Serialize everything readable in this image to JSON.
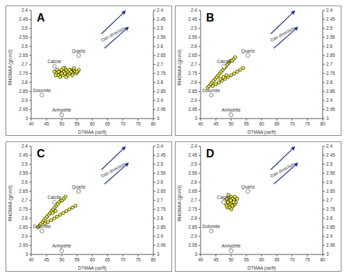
{
  "chart_data": [
    {
      "type": "scatter",
      "title": "A",
      "x_label": "DTMAA (us/ft)",
      "y_label": "RHOMAA (g/cm3)",
      "xlim": [
        40,
        80
      ],
      "xticks": [
        40,
        45,
        50,
        55,
        60,
        65,
        70,
        75,
        80
      ],
      "ylim": [
        2.4,
        3
      ],
      "yticks": [
        2.4,
        2.45,
        2.5,
        2.55,
        2.6,
        2.65,
        2.7,
        2.75,
        2.8,
        2.85,
        2.9,
        2.95,
        3
      ],
      "series": [
        {
          "color": "#ffff33",
          "marker": "circle",
          "x": [
            47.6,
            48.2,
            48.5,
            48.9,
            49.2,
            49.6,
            50,
            50.3,
            50.7,
            51,
            51.4,
            51.8,
            52.1,
            52.5,
            52.9,
            53.2,
            53.6,
            54,
            54.4,
            54.8,
            55.2,
            55.6,
            48,
            49,
            50,
            51,
            52,
            53,
            54,
            55,
            49.5,
            50.5,
            51.5,
            52.5,
            53.5
          ],
          "y": [
            2.74,
            2.75,
            2.73,
            2.76,
            2.74,
            2.75,
            2.73,
            2.76,
            2.74,
            2.75,
            2.73,
            2.76,
            2.74,
            2.75,
            2.73,
            2.74,
            2.75,
            2.73,
            2.74,
            2.75,
            2.74,
            2.73,
            2.76,
            2.74,
            2.75,
            2.72,
            2.76,
            2.74,
            2.72,
            2.74,
            2.77,
            2.72,
            2.77,
            2.73,
            2.76
          ]
        }
      ],
      "reference_points": [
        {
          "label": "Dolomite",
          "x": 43.5,
          "y": 2.87
        },
        {
          "label": "Calcite",
          "x": 47.6,
          "y": 2.71
        },
        {
          "label": "Quartz",
          "x": 55.5,
          "y": 2.65
        },
        {
          "label": "Anhydrite",
          "x": 50,
          "y": 2.98
        }
      ],
      "arrows": [
        {
          "x": [
            63,
            71
          ],
          "y": [
            2.53,
            2.4
          ]
        },
        {
          "x": [
            64,
            72
          ],
          "y": [
            2.61,
            2.49
          ]
        }
      ],
      "annotations": [
        {
          "text": "Gas direction",
          "x": 67,
          "y": 2.54
        }
      ]
    },
    {
      "type": "scatter",
      "title": "B",
      "x_label": "DTMAA (us/ft)",
      "y_label": "RHOMAA (g/cm3)",
      "xlim": [
        40,
        80
      ],
      "xticks": [
        40,
        45,
        50,
        55,
        60,
        65,
        70,
        75,
        80
      ],
      "ylim": [
        2.4,
        3
      ],
      "yticks": [
        2.4,
        2.45,
        2.5,
        2.55,
        2.6,
        2.65,
        2.7,
        2.75,
        2.8,
        2.85,
        2.9,
        2.95,
        3
      ],
      "series": [
        {
          "color": "#ffff33",
          "marker": "circle",
          "x": [
            42.3,
            42.8,
            43.3,
            43.8,
            44.3,
            44.8,
            45.3,
            45.8,
            46.3,
            46.8,
            47.3,
            47.8,
            48.3,
            48.8,
            49.3,
            49.8,
            50.3,
            50.8,
            51.3,
            44,
            45,
            46,
            47,
            48,
            49,
            50,
            51,
            52,
            53,
            54,
            46.5,
            47.5,
            48.5
          ],
          "y": [
            2.83,
            2.82,
            2.81,
            2.8,
            2.79,
            2.78,
            2.77,
            2.76,
            2.75,
            2.74,
            2.73,
            2.72,
            2.71,
            2.7,
            2.69,
            2.68,
            2.68,
            2.67,
            2.66,
            2.82,
            2.81,
            2.8,
            2.79,
            2.78,
            2.77,
            2.76,
            2.75,
            2.74,
            2.73,
            2.72,
            2.78,
            2.77,
            2.76
          ]
        }
      ],
      "reference_points": [
        {
          "label": "Dolomite",
          "x": 43.5,
          "y": 2.87
        },
        {
          "label": "Calcite",
          "x": 47.6,
          "y": 2.71
        },
        {
          "label": "Quartz",
          "x": 55.5,
          "y": 2.65
        },
        {
          "label": "Anhydrite",
          "x": 50,
          "y": 2.98
        }
      ],
      "arrows": [
        {
          "x": [
            63,
            71
          ],
          "y": [
            2.53,
            2.4
          ]
        },
        {
          "x": [
            64,
            72
          ],
          "y": [
            2.61,
            2.49
          ]
        }
      ],
      "annotations": [
        {
          "text": "Gas direction",
          "x": 67,
          "y": 2.54
        }
      ]
    },
    {
      "type": "scatter",
      "title": "C",
      "x_label": "DTMAA (us/ft)",
      "y_label": "RHOMAA (g/cm3)",
      "xlim": [
        40,
        80
      ],
      "xticks": [
        40,
        45,
        50,
        55,
        60,
        65,
        70,
        75,
        80
      ],
      "ylim": [
        2.4,
        3
      ],
      "yticks": [
        2.4,
        2.45,
        2.5,
        2.55,
        2.6,
        2.65,
        2.7,
        2.75,
        2.8,
        2.85,
        2.9,
        2.95,
        3
      ],
      "series": [
        {
          "color": "#ffff33",
          "marker": "circle",
          "x": [
            42.2,
            42.7,
            43.2,
            43.7,
            44.2,
            44.7,
            45.2,
            45.7,
            46.2,
            46.7,
            47.2,
            47.7,
            48.2,
            48.7,
            49.2,
            49.7,
            50.2,
            50.7,
            51.2,
            44.5,
            45.5,
            46.5,
            47.5,
            48.5,
            49.5,
            50.5,
            51.5,
            52.5,
            53.5,
            54.5,
            47,
            48
          ],
          "y": [
            2.85,
            2.84,
            2.83,
            2.82,
            2.81,
            2.8,
            2.79,
            2.78,
            2.77,
            2.76,
            2.75,
            2.74,
            2.73,
            2.72,
            2.71,
            2.7,
            2.7,
            2.69,
            2.68,
            2.83,
            2.82,
            2.81,
            2.8,
            2.79,
            2.78,
            2.77,
            2.76,
            2.75,
            2.74,
            2.73,
            2.77,
            2.76
          ]
        }
      ],
      "reference_points": [
        {
          "label": "Dolomite",
          "x": 43.5,
          "y": 2.87
        },
        {
          "label": "Calcite",
          "x": 47.6,
          "y": 2.71
        },
        {
          "label": "Quartz",
          "x": 55.5,
          "y": 2.65
        },
        {
          "label": "Anhydrite",
          "x": 50,
          "y": 2.98
        }
      ],
      "arrows": [
        {
          "x": [
            63,
            71
          ],
          "y": [
            2.53,
            2.4
          ]
        },
        {
          "x": [
            64,
            72
          ],
          "y": [
            2.61,
            2.49
          ]
        }
      ],
      "annotations": [
        {
          "text": "Gas direction",
          "x": 67,
          "y": 2.54
        }
      ]
    },
    {
      "type": "scatter",
      "title": "D",
      "x_label": "DTMAA (us/ft)",
      "y_label": "RHOMAA (g/cm3)",
      "xlim": [
        40,
        80
      ],
      "xticks": [
        40,
        45,
        50,
        55,
        60,
        65,
        70,
        75,
        80
      ],
      "ylim": [
        2.4,
        3
      ],
      "yticks": [
        2.4,
        2.45,
        2.5,
        2.55,
        2.6,
        2.65,
        2.7,
        2.75,
        2.8,
        2.85,
        2.9,
        2.95,
        3
      ],
      "series": [
        {
          "color": "#ffff33",
          "marker": "circle",
          "x": [
            47.5,
            48,
            48.3,
            48.6,
            49,
            49.2,
            49.5,
            49.8,
            50,
            50.2,
            50.5,
            50.8,
            51,
            51.3,
            51.6,
            52,
            48.8,
            49.6,
            50.4,
            51.2,
            49.1,
            50.1,
            50.9,
            48.5,
            49.9
          ],
          "y": [
            2.71,
            2.7,
            2.72,
            2.69,
            2.71,
            2.73,
            2.7,
            2.72,
            2.68,
            2.71,
            2.69,
            2.73,
            2.7,
            2.72,
            2.71,
            2.69,
            2.74,
            2.74,
            2.73,
            2.68,
            2.67,
            2.75,
            2.71,
            2.73,
            2.7
          ]
        }
      ],
      "reference_points": [
        {
          "label": "Dolomite",
          "x": 43.5,
          "y": 2.87
        },
        {
          "label": "Calcite",
          "x": 47.6,
          "y": 2.71
        },
        {
          "label": "Quartz",
          "x": 55.5,
          "y": 2.65
        },
        {
          "label": "Anhydrite",
          "x": 50,
          "y": 2.98
        }
      ],
      "arrows": [
        {
          "x": [
            63,
            71
          ],
          "y": [
            2.53,
            2.4
          ]
        },
        {
          "x": [
            64,
            72
          ],
          "y": [
            2.61,
            2.49
          ]
        }
      ],
      "annotations": [
        {
          "text": "Gas direction",
          "x": 67,
          "y": 2.54
        }
      ]
    }
  ]
}
